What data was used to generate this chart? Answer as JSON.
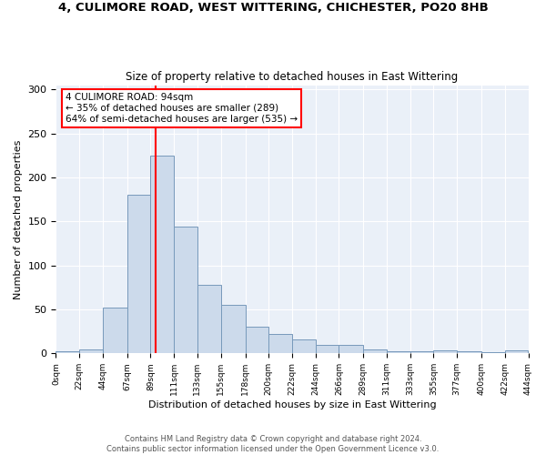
{
  "title1": "4, CULIMORE ROAD, WEST WITTERING, CHICHESTER, PO20 8HB",
  "title2": "Size of property relative to detached houses in East Wittering",
  "xlabel": "Distribution of detached houses by size in East Wittering",
  "ylabel": "Number of detached properties",
  "footnote1": "Contains HM Land Registry data © Crown copyright and database right 2024.",
  "footnote2": "Contains public sector information licensed under the Open Government Licence v3.0.",
  "bar_color": "#ccdaeb",
  "bar_edge_color": "#7799bb",
  "tick_labels": [
    "0sqm",
    "22sqm",
    "44sqm",
    "67sqm",
    "89sqm",
    "111sqm",
    "133sqm",
    "155sqm",
    "178sqm",
    "200sqm",
    "222sqm",
    "244sqm",
    "266sqm",
    "289sqm",
    "311sqm",
    "333sqm",
    "355sqm",
    "377sqm",
    "400sqm",
    "422sqm",
    "444sqm"
  ],
  "bin_heights": [
    2,
    5,
    52,
    180,
    225,
    144,
    78,
    55,
    30,
    22,
    16,
    10,
    10,
    5,
    2,
    2,
    3,
    2,
    1,
    3
  ],
  "ylim": [
    0,
    305
  ],
  "yticks": [
    0,
    50,
    100,
    150,
    200,
    250,
    300
  ],
  "property_label": "4 CULIMORE ROAD: 94sqm",
  "annot_line1": "← 35% of detached houses are smaller (289)",
  "annot_line2": "64% of semi-detached houses are larger (535) →",
  "red_line_x": 94,
  "annotation_box_color": "white",
  "annotation_box_edge": "red",
  "red_line_color": "red",
  "background_color": "#eaf0f8",
  "bin_edges": [
    0,
    22,
    44,
    67,
    89,
    111,
    133,
    155,
    178,
    200,
    222,
    244,
    266,
    289,
    311,
    333,
    355,
    377,
    400,
    422,
    444
  ]
}
